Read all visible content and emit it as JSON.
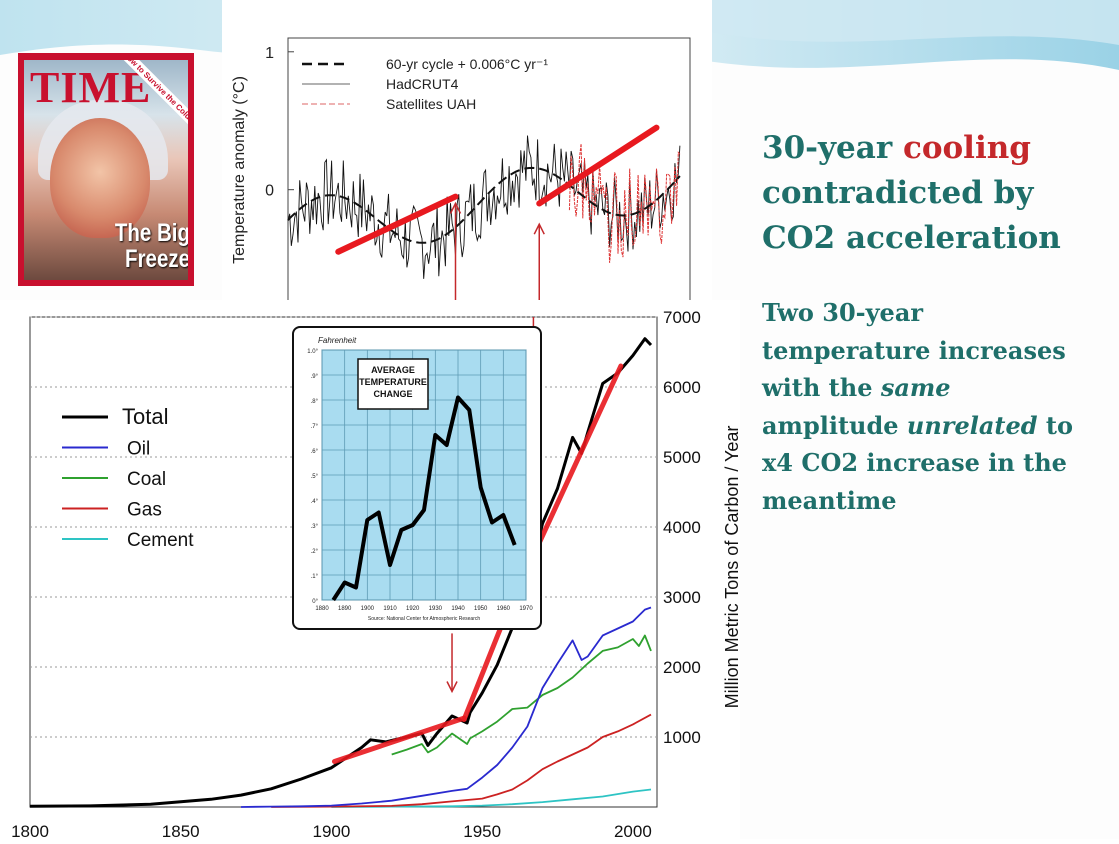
{
  "slide": {
    "heading": {
      "part1": "30-year ",
      "part2": "cooling",
      "part3": " contradicted by CO2 acceleration"
    },
    "body": {
      "part1": "Two 30-year temperature increases with the ",
      "part2": "same",
      "part3": " amplitude ",
      "part4": "unrelated",
      "part5": " to x4 CO2 increase in the meantime"
    }
  },
  "time_cover": {
    "logo": "TIME",
    "headline": "The Big Freeze",
    "corner_text": "How to Survive the Cold"
  },
  "colors": {
    "heading_teal": "#1f6f6a",
    "cooling_red": "#c4282b",
    "trend_red": "#e8191f",
    "total": "#000000",
    "oil": "#2a2acf",
    "coal": "#2fa12f",
    "gas": "#cc2222",
    "cement": "#2ec4c4",
    "inset_bg": "#a9dcf0"
  },
  "chart_data": [
    {
      "type": "line",
      "ylabel": "Temperature anomaly (°C)",
      "y_ticks": [
        "1",
        "0"
      ],
      "legend_position": "top",
      "series": [
        {
          "name": "60-yr cycle + 0.006°C yr⁻¹",
          "style": "dashed"
        },
        {
          "name": "HadCRUT4",
          "style": "solid"
        },
        {
          "name": "Satellites UAH",
          "style": "dash-dot"
        }
      ],
      "trend_segments_red": [
        {
          "x": [
            1910,
            1945
          ],
          "y": [
            -0.45,
            -0.05
          ]
        },
        {
          "x": [
            1970,
            2005
          ],
          "y": [
            -0.1,
            0.45
          ]
        }
      ]
    },
    {
      "type": "line",
      "title": "",
      "xlabel": "",
      "ylabel": "Million Metric Tons of Carbon / Year",
      "x_ticks": [
        "1800",
        "1850",
        "1900",
        "1950",
        "2000"
      ],
      "y_ticks": [
        "1000",
        "2000",
        "3000",
        "4000",
        "5000",
        "6000",
        "7000"
      ],
      "ylim": [
        0,
        7000
      ],
      "xlim": [
        1800,
        2008
      ],
      "grid": true,
      "legend_position": "left",
      "series": [
        {
          "name": "Total",
          "x": [
            1800,
            1820,
            1840,
            1860,
            1870,
            1880,
            1890,
            1900,
            1910,
            1913,
            1918,
            1920,
            1925,
            1930,
            1932,
            1935,
            1940,
            1945,
            1946,
            1950,
            1955,
            1960,
            1965,
            1970,
            1975,
            1980,
            1983,
            1985,
            1990,
            1995,
            2000,
            2004,
            2006
          ],
          "y": [
            10,
            15,
            40,
            110,
            170,
            260,
            400,
            560,
            850,
            960,
            930,
            950,
            1000,
            1050,
            880,
            1050,
            1300,
            1200,
            1350,
            1630,
            2030,
            2560,
            3120,
            4050,
            4550,
            5280,
            5050,
            5350,
            6050,
            6200,
            6450,
            6690,
            6600
          ]
        },
        {
          "name": "Oil",
          "x": [
            1870,
            1880,
            1890,
            1900,
            1910,
            1920,
            1930,
            1940,
            1945,
            1950,
            1955,
            1960,
            1965,
            1970,
            1975,
            1980,
            1983,
            1985,
            1990,
            1995,
            2000,
            2004,
            2006
          ],
          "y": [
            0,
            5,
            10,
            20,
            50,
            90,
            160,
            230,
            260,
            420,
            600,
            850,
            1150,
            1700,
            2050,
            2380,
            2100,
            2150,
            2450,
            2550,
            2650,
            2820,
            2850
          ]
        },
        {
          "name": "Coal",
          "x": [
            1920,
            1925,
            1930,
            1932,
            1935,
            1940,
            1945,
            1946,
            1950,
            1955,
            1960,
            1965,
            1970,
            1975,
            1980,
            1985,
            1990,
            1995,
            2000,
            2002,
            2004,
            2006
          ],
          "y": [
            750,
            820,
            900,
            780,
            850,
            1050,
            900,
            980,
            1080,
            1220,
            1400,
            1420,
            1600,
            1700,
            1850,
            2050,
            2230,
            2280,
            2400,
            2300,
            2450,
            2230
          ]
        },
        {
          "name": "Gas",
          "x": [
            1880,
            1900,
            1920,
            1930,
            1940,
            1950,
            1955,
            1960,
            1965,
            1970,
            1975,
            1980,
            1985,
            1990,
            1995,
            2000,
            2006
          ],
          "y": [
            0,
            5,
            15,
            40,
            80,
            120,
            180,
            250,
            380,
            540,
            650,
            750,
            850,
            1000,
            1080,
            1180,
            1320
          ]
        },
        {
          "name": "Cement",
          "x": [
            1900,
            1920,
            1940,
            1950,
            1960,
            1970,
            1980,
            1990,
            2000,
            2006
          ],
          "y": [
            0,
            5,
            10,
            20,
            40,
            70,
            110,
            150,
            220,
            250
          ]
        }
      ],
      "trend_segments_red": [
        {
          "x": [
            1901,
            1944
          ],
          "y": [
            650,
            1270
          ]
        },
        {
          "x": [
            1944,
            1963
          ],
          "y": [
            1250,
            3300
          ]
        },
        {
          "x": [
            1966,
            1996
          ],
          "y": [
            3500,
            6300
          ]
        }
      ],
      "arrows_down": [
        {
          "x": 1940,
          "from_y": 2480,
          "to_y": 1650
        },
        {
          "x": 1967,
          "from_y": 7000,
          "to_y": 4220
        }
      ]
    },
    {
      "type": "line",
      "title": "AVERAGE TEMPERATURE CHANGE",
      "unit_label": "Fahrenheit",
      "source": "Source: National Center for Atmospheric Research",
      "x_ticks": [
        "1880",
        "1890",
        "1900",
        "1910",
        "1920",
        "1930",
        "1940",
        "1950",
        "1960",
        "1970"
      ],
      "y_ticks": [
        "0°",
        ".1°",
        ".2°",
        ".3°",
        ".4°",
        ".5°",
        ".6°",
        ".7°",
        ".8°",
        ".9°",
        "1.0°"
      ],
      "xlim": [
        1880,
        1970
      ],
      "ylim": [
        0,
        1.0
      ],
      "x": [
        1885,
        1890,
        1895,
        1900,
        1905,
        1910,
        1915,
        1920,
        1925,
        1930,
        1935,
        1940,
        1945,
        1950,
        1955,
        1960,
        1965
      ],
      "y": [
        0.0,
        0.07,
        0.05,
        0.32,
        0.35,
        0.14,
        0.28,
        0.3,
        0.36,
        0.66,
        0.62,
        0.81,
        0.76,
        0.45,
        0.31,
        0.34,
        0.22
      ]
    }
  ]
}
